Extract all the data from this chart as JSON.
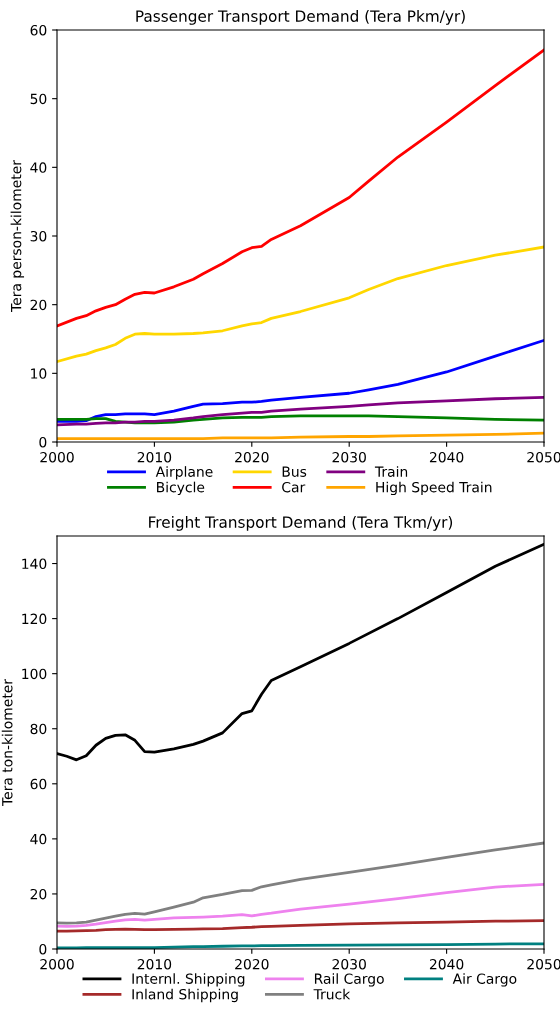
{
  "chart_data": [
    {
      "type": "line",
      "title": "Passenger Transport Demand (Tera Pkm/yr)",
      "ylabel": "Tera person-kilometer",
      "x": [
        2000,
        2002,
        2003,
        2004,
        2005,
        2006,
        2007,
        2008,
        2009,
        2010,
        2012,
        2014,
        2015,
        2017,
        2019,
        2020,
        2021,
        2022,
        2025,
        2030,
        2032,
        2035,
        2040,
        2045,
        2050
      ],
      "xlim": [
        2000,
        2050
      ],
      "xticks": [
        2000,
        2010,
        2020,
        2030,
        2040,
        2050
      ],
      "ylim": [
        0,
        60
      ],
      "yticks": [
        0,
        10,
        20,
        30,
        40,
        50,
        60
      ],
      "grid": false,
      "legend": "bottom",
      "marker": "none",
      "line_style": "solid",
      "series": [
        {
          "name": "Airplane",
          "color": "#0000ff",
          "values": [
            3.0,
            3.0,
            3.1,
            3.7,
            4.0,
            4.0,
            4.1,
            4.1,
            4.1,
            4.0,
            4.5,
            5.2,
            5.5,
            5.6,
            5.8,
            5.8,
            5.9,
            6.1,
            6.5,
            7.1,
            7.6,
            8.4,
            10.2,
            12.5,
            14.8
          ]
        },
        {
          "name": "Bicycle",
          "color": "#008000",
          "values": [
            3.3,
            3.3,
            3.3,
            3.4,
            3.4,
            3.0,
            2.9,
            2.8,
            2.8,
            2.8,
            2.9,
            3.2,
            3.3,
            3.5,
            3.6,
            3.6,
            3.6,
            3.7,
            3.8,
            3.8,
            3.8,
            3.7,
            3.5,
            3.3,
            3.2
          ]
        },
        {
          "name": "Bus",
          "color": "#ffd700",
          "values": [
            11.7,
            12.5,
            12.8,
            13.3,
            13.7,
            14.2,
            15.1,
            15.7,
            15.8,
            15.7,
            15.7,
            15.8,
            15.9,
            16.2,
            16.9,
            17.2,
            17.4,
            18.0,
            19.0,
            21.0,
            22.2,
            23.8,
            25.7,
            27.2,
            28.4
          ]
        },
        {
          "name": "Car",
          "color": "#ff0000",
          "values": [
            16.9,
            18.0,
            18.4,
            19.1,
            19.6,
            20.0,
            20.8,
            21.5,
            21.8,
            21.7,
            22.6,
            23.7,
            24.5,
            26.0,
            27.7,
            28.3,
            28.5,
            29.5,
            31.5,
            35.6,
            38.0,
            41.5,
            46.6,
            51.9,
            57.1
          ]
        },
        {
          "name": "Train",
          "color": "#800080",
          "values": [
            2.5,
            2.6,
            2.6,
            2.7,
            2.8,
            2.8,
            2.9,
            2.9,
            3.0,
            3.0,
            3.2,
            3.5,
            3.7,
            4.0,
            4.2,
            4.3,
            4.3,
            4.5,
            4.8,
            5.2,
            5.4,
            5.7,
            6.0,
            6.3,
            6.5
          ]
        },
        {
          "name": "High Speed Train",
          "color": "#ffa500",
          "values": [
            0.5,
            0.5,
            0.5,
            0.5,
            0.5,
            0.5,
            0.5,
            0.5,
            0.5,
            0.5,
            0.5,
            0.5,
            0.5,
            0.6,
            0.6,
            0.6,
            0.6,
            0.6,
            0.7,
            0.8,
            0.8,
            0.9,
            1.0,
            1.1,
            1.3
          ]
        }
      ]
    },
    {
      "type": "line",
      "title": "Freight Transport Demand (Tera Tkm/yr)",
      "ylabel": "Tera ton-kilometer",
      "x": [
        2000,
        2001,
        2002,
        2003,
        2004,
        2005,
        2006,
        2007,
        2008,
        2009,
        2010,
        2012,
        2014,
        2015,
        2017,
        2019,
        2020,
        2021,
        2022,
        2025,
        2030,
        2035,
        2040,
        2045,
        2050
      ],
      "xlim": [
        2000,
        2050
      ],
      "xticks": [
        2000,
        2010,
        2020,
        2030,
        2040,
        2050
      ],
      "ylim": [
        0,
        150
      ],
      "yticks": [
        0,
        20,
        40,
        60,
        80,
        100,
        120,
        140
      ],
      "grid": false,
      "legend": "bottom",
      "marker": "none",
      "line_style": "solid",
      "series": [
        {
          "name": "Internl. Shipping",
          "color": "#000000",
          "values": [
            71,
            70,
            68.7,
            70.2,
            74,
            76.5,
            77.6,
            77.8,
            75.8,
            71.7,
            71.5,
            72.7,
            74.3,
            75.5,
            78.5,
            85.5,
            86.5,
            92.5,
            97.5,
            102.5,
            111,
            120,
            129.5,
            139,
            147
          ]
        },
        {
          "name": "Inland Shipping",
          "color": "#a52a2a",
          "values": [
            6.5,
            6.5,
            6.6,
            6.7,
            6.8,
            7.0,
            7.1,
            7.2,
            7.1,
            7.0,
            7.0,
            7.1,
            7.2,
            7.3,
            7.4,
            7.8,
            7.9,
            8.1,
            8.2,
            8.6,
            9.1,
            9.5,
            9.8,
            10.1,
            10.3
          ]
        },
        {
          "name": "Rail Cargo",
          "color": "#ee82ee",
          "values": [
            8.3,
            8.2,
            8.3,
            8.6,
            9.0,
            9.6,
            10.1,
            10.6,
            10.8,
            10.5,
            10.8,
            11.3,
            11.5,
            11.6,
            11.9,
            12.5,
            12.0,
            12.6,
            13.0,
            14.5,
            16.3,
            18.3,
            20.5,
            22.5,
            23.5
          ]
        },
        {
          "name": "Truck",
          "color": "#808080",
          "values": [
            9.5,
            9.4,
            9.5,
            9.8,
            10.5,
            11.2,
            11.9,
            12.6,
            12.9,
            12.7,
            13.5,
            15.2,
            17.0,
            18.6,
            19.8,
            21.2,
            21.3,
            22.6,
            23.3,
            25.3,
            27.8,
            30.5,
            33.3,
            36.0,
            38.5
          ]
        },
        {
          "name": "Air Cargo",
          "color": "#008080",
          "values": [
            0.4,
            0.4,
            0.4,
            0.5,
            0.5,
            0.5,
            0.5,
            0.5,
            0.5,
            0.5,
            0.5,
            0.7,
            0.9,
            0.9,
            1.0,
            1.1,
            1.1,
            1.2,
            1.2,
            1.3,
            1.4,
            1.5,
            1.6,
            1.8,
            1.9
          ]
        }
      ]
    }
  ]
}
